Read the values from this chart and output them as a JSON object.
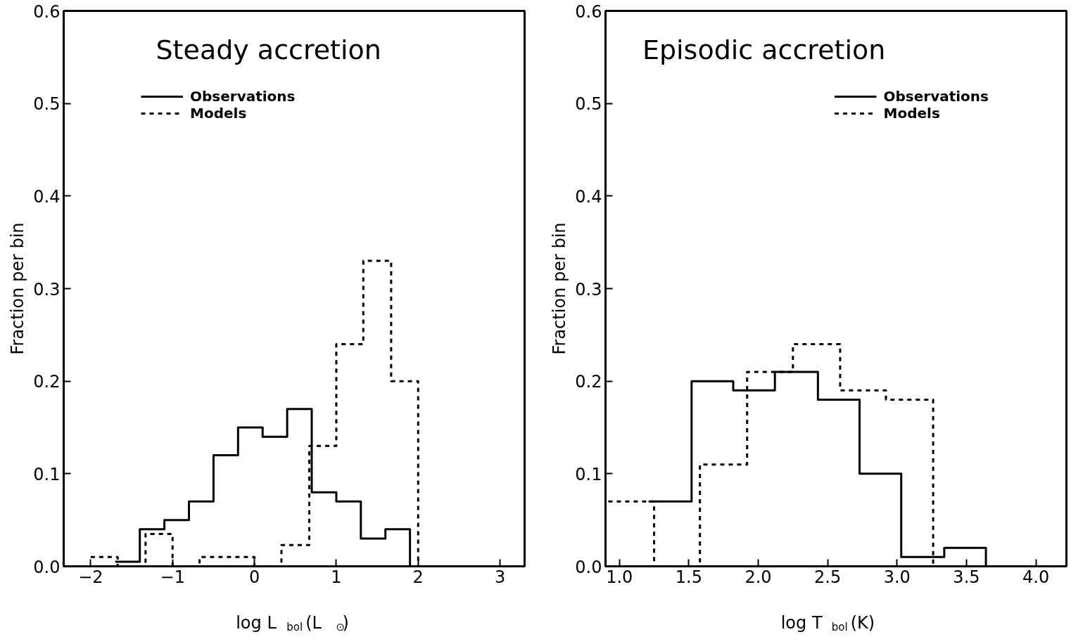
{
  "chart_data": [
    {
      "type": "step",
      "title": "Steady accretion",
      "xlabel": "log L$_{bol}$ (L$_{⊙}$)",
      "ylabel": "Fraction per bin",
      "xlim": [
        -2.33,
        3.3
      ],
      "ylim": [
        0,
        0.6
      ],
      "xticks": [
        -2,
        -1,
        0,
        1,
        2,
        3
      ],
      "yticks": [
        {
          "value": 0,
          "label": "0.0"
        },
        0.1,
        0.2,
        0.3,
        0.4,
        0.5,
        0.6
      ],
      "legend": "top left",
      "series": [
        {
          "name": "Observations",
          "color": "#000000",
          "line_style": "solid",
          "x": [
            -1.7,
            -1.4,
            -1.1,
            -0.8,
            -0.5,
            -0.2,
            0.1,
            0.4,
            0.7,
            1.0,
            1.3,
            1.6,
            1.9
          ],
          "values": [
            0.005,
            0.04,
            0.05,
            0.07,
            0.12,
            0.15,
            0.14,
            0.17,
            0.08,
            0.07,
            0.03,
            0.04,
            0
          ]
        },
        {
          "name": "Models",
          "color": "#000000",
          "line_style": "dashed",
          "x": [
            -2.0,
            -1.67,
            -1.33,
            -1.0,
            -0.67,
            -0.33,
            0,
            0.33,
            0.67,
            1.0,
            1.33,
            1.67,
            2.0
          ],
          "values": [
            0.01,
            0,
            0.035,
            0,
            0.01,
            0.01,
            0,
            0.023,
            0.13,
            0.24,
            0.33,
            0.2,
            0
          ]
        }
      ]
    },
    {
      "type": "step",
      "title": "Episodic accretion",
      "xlabel": "log T$_{bol}$ (K)",
      "ylabel": "Fraction per bin",
      "xlim": [
        0.9,
        4.22
      ],
      "ylim": [
        0,
        0.6
      ],
      "xticks": [
        {
          "value": 1,
          "label": "1.0"
        },
        1.5,
        {
          "value": 2,
          "label": "2.0"
        },
        2.5,
        {
          "value": 3,
          "label": "3.0"
        },
        3.5,
        {
          "value": 4,
          "label": "4.0"
        }
      ],
      "yticks": [
        {
          "value": 0,
          "label": "0.0"
        },
        0.1,
        0.2,
        0.3,
        0.4,
        0.5,
        0.6
      ],
      "legend": "top right",
      "series": [
        {
          "name": "Observations",
          "color": "#000000",
          "line_style": "solid",
          "x": [
            1.21,
            1.52,
            1.82,
            2.12,
            2.43,
            2.73,
            3.03,
            3.34,
            3.64
          ],
          "values": [
            0.07,
            0.2,
            0.19,
            0.21,
            0.18,
            0.1,
            0.01,
            0.02,
            0
          ]
        },
        {
          "name": "Models",
          "color": "#000000",
          "line_style": "dashed",
          "x": [
            0.92,
            1.25,
            1.58,
            1.92,
            2.25,
            2.59,
            2.92,
            3.26
          ],
          "values": [
            0.07,
            0,
            0.11,
            0.21,
            0.24,
            0.19,
            0.18,
            0
          ]
        }
      ]
    }
  ]
}
